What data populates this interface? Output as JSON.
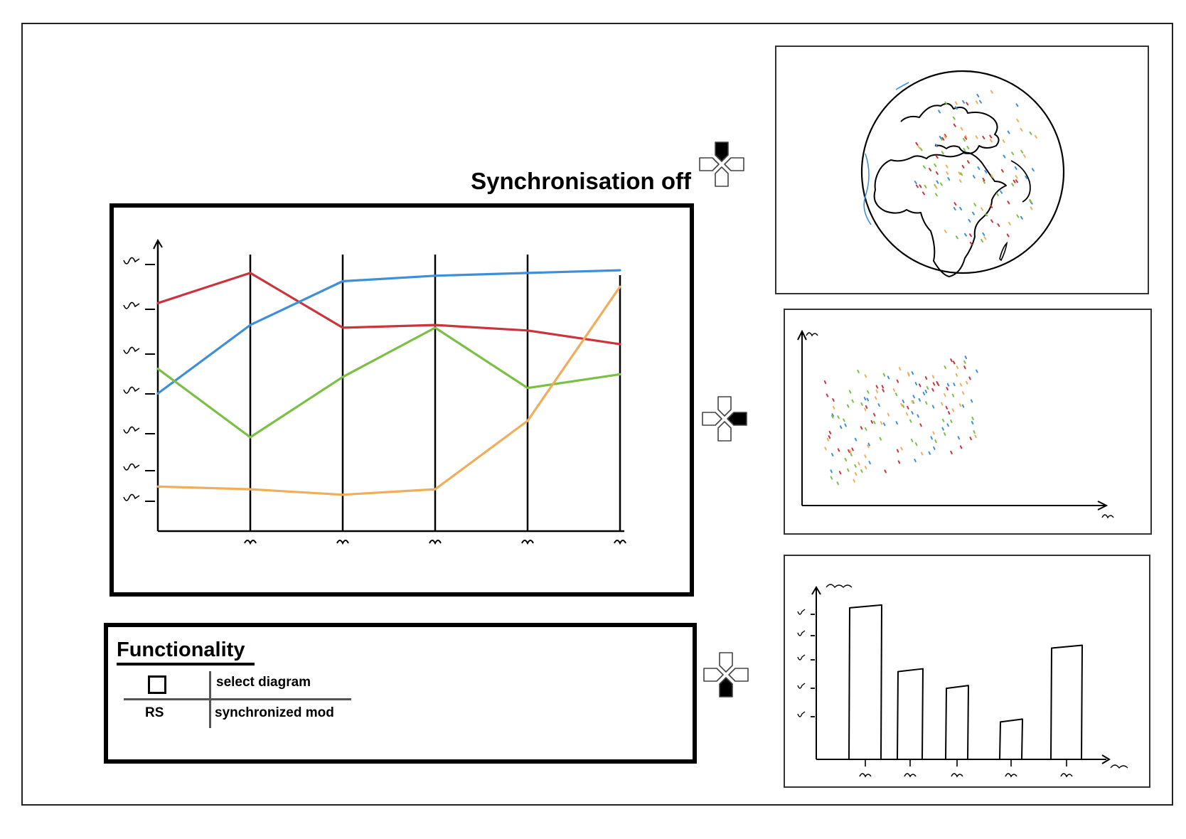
{
  "header": {
    "sync_status": "Synchronisation off"
  },
  "functionality": {
    "title": "Functionality",
    "rows": [
      {
        "key": "",
        "key_icon": "checkbox-square-icon",
        "label": "select diagram"
      },
      {
        "key": "RS",
        "label": "synchronized mod"
      }
    ]
  },
  "dpads": [
    {
      "name": "dpad-up-icon",
      "active": "up"
    },
    {
      "name": "dpad-right-icon",
      "active": "right"
    },
    {
      "name": "dpad-down-icon",
      "active": "down"
    }
  ],
  "colors": {
    "red": "#c9353b",
    "blue": "#3f8fd8",
    "green": "#7cbf45",
    "orange": "#eeae5c",
    "stroke": "#000000"
  },
  "chart_data": [
    {
      "type": "line",
      "x": [
        0,
        1,
        2,
        3,
        4,
        5
      ],
      "ylim": [
        0,
        10
      ],
      "series": [
        {
          "color": "red",
          "values": [
            8.2,
            9.3,
            7.3,
            7.4,
            7.2,
            6.7
          ]
        },
        {
          "color": "blue",
          "values": [
            4.9,
            7.4,
            9.0,
            9.2,
            9.3,
            9.4
          ]
        },
        {
          "color": "green",
          "values": [
            5.8,
            3.3,
            5.5,
            7.3,
            5.1,
            5.6
          ]
        },
        {
          "color": "orange",
          "values": [
            1.5,
            1.4,
            1.2,
            1.4,
            3.9,
            8.8
          ]
        }
      ],
      "grid": false
    },
    {
      "type": "scatter",
      "point_count": 150,
      "point_colors": [
        "red",
        "blue",
        "green",
        "orange"
      ]
    },
    {
      "type": "bar",
      "values": [
        4.6,
        2.7,
        2.2,
        1.2,
        3.4
      ],
      "ylim": [
        0,
        5
      ]
    }
  ]
}
